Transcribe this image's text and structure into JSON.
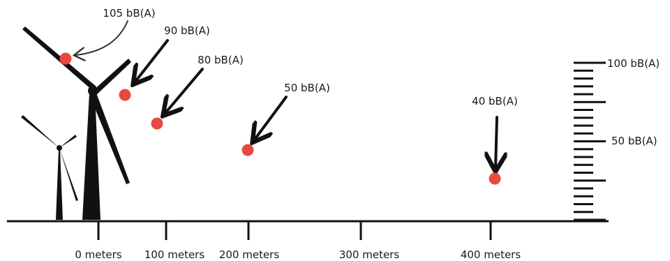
{
  "diagram": {
    "colors": {
      "ink": "#111111",
      "dot": "#e8483f"
    },
    "distance_labels": [
      "0 meters",
      "100 meters",
      "200 meters",
      "300 meters",
      "400 meters"
    ],
    "points": [
      {
        "label": "105 bB(A)"
      },
      {
        "label": "90 bB(A)"
      },
      {
        "label": "80 bB(A)"
      },
      {
        "label": "50 bB(A)"
      },
      {
        "label": "40 bB(A)"
      }
    ],
    "scale": {
      "top_label": "100 bB(A)",
      "mid_label": "50 bB(A)"
    }
  }
}
